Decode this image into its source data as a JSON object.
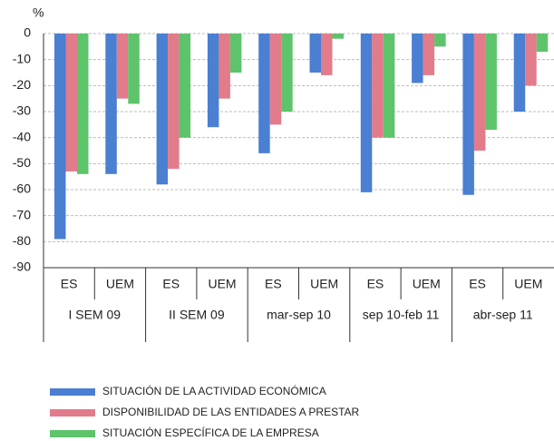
{
  "chart_data": {
    "type": "bar",
    "y_label": "%",
    "categories": [
      "ES",
      "UEM",
      "ES",
      "UEM",
      "ES",
      "UEM",
      "ES",
      "UEM",
      "ES",
      "UEM"
    ],
    "groups": [
      "I SEM 09",
      "II SEM 09",
      "mar-sep 10",
      "sep 10-feb 11",
      "abr-sep 11"
    ],
    "series": [
      {
        "name": "SITUACIÓN DE LA ACTIVIDAD ECONÓMICA",
        "color": "#4a7fd1",
        "values": [
          -79,
          -54,
          -58,
          -36,
          -46,
          -15,
          -61,
          -19,
          -62,
          -30
        ]
      },
      {
        "name": "DISPONIBILIDAD DE LAS ENTIDADES A PRESTAR",
        "color": "#e27b8a",
        "values": [
          -53,
          -25,
          -52,
          -25,
          -35,
          -16,
          -40,
          -16,
          -45,
          -20
        ]
      },
      {
        "name": "SITUACIÓN ESPECÍFICA DE LA EMPRESA",
        "color": "#5dc46c",
        "values": [
          -54,
          -27,
          -40,
          -15,
          -30,
          -2,
          -40,
          -5,
          -37,
          -7
        ]
      }
    ],
    "ylim": [
      -90,
      0
    ],
    "yticks": [
      0,
      -10,
      -20,
      -30,
      -40,
      -50,
      -60,
      -70,
      -80,
      -90
    ],
    "grid": true
  }
}
